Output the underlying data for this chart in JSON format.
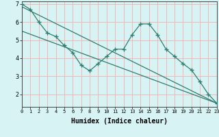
{
  "line1_x": [
    0,
    1,
    2,
    3,
    4,
    5,
    6,
    7,
    8,
    9,
    10,
    11,
    12,
    13,
    14,
    15,
    16,
    17,
    18,
    19,
    20,
    21,
    22,
    23
  ],
  "line1_y": [
    7.0,
    6.7,
    6.0,
    5.4,
    5.2,
    4.7,
    4.3,
    3.6,
    3.3,
    3.7,
    4.1,
    4.5,
    4.5,
    5.3,
    5.9,
    5.9,
    5.3,
    4.5,
    4.1,
    3.7,
    3.35,
    2.7,
    2.0,
    1.5
  ],
  "line2_x": [
    0,
    23
  ],
  "line2_y": [
    6.85,
    1.5
  ],
  "line3_x": [
    0,
    23
  ],
  "line3_y": [
    5.5,
    1.5
  ],
  "line_color": "#2e7d6e",
  "bg_color": "#d7f3f3",
  "grid_color": "#f0b8b8",
  "xlabel": "Humidex (Indice chaleur)",
  "xlim": [
    0,
    23
  ],
  "ylim": [
    1.3,
    7.15
  ],
  "yticks": [
    2,
    3,
    4,
    5,
    6,
    7
  ],
  "xticks": [
    0,
    1,
    2,
    3,
    4,
    5,
    6,
    7,
    8,
    9,
    10,
    11,
    12,
    13,
    14,
    15,
    16,
    17,
    18,
    19,
    20,
    21,
    22,
    23
  ],
  "marker": "+",
  "markersize": 4,
  "linewidth": 0.9
}
